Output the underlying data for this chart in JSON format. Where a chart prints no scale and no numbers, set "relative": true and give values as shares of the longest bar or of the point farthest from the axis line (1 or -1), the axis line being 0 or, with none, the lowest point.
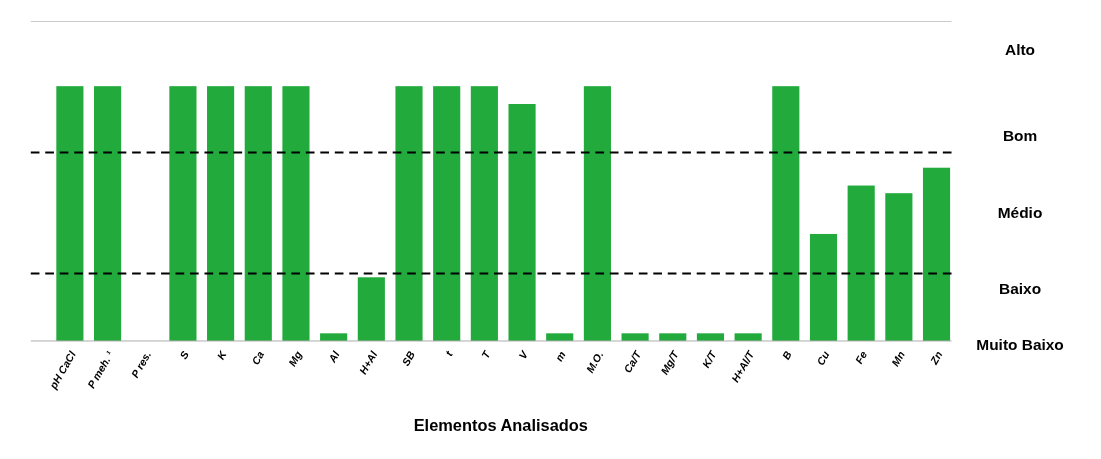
{
  "chart_data": {
    "type": "bar",
    "relative": true,
    "xlabel": "Elementos Analisados",
    "categories": [
      "pH CaCl",
      "P meh. ¹",
      "P res.",
      "S",
      "K",
      "Ca",
      "Mg",
      "Al",
      "H+Al",
      "SB",
      "t",
      "T",
      "V",
      "m",
      "M.O.",
      "Ca/T",
      "Mg/T",
      "K/T",
      "H+Al/T",
      "B",
      "Cu",
      "Fe",
      "Mn",
      "Zn"
    ],
    "values": [
      1,
      1,
      0,
      1,
      1,
      1,
      1,
      0.03,
      0.25,
      1,
      1,
      1,
      0.93,
      0.03,
      1,
      0.03,
      0.03,
      0.03,
      0.03,
      1,
      0.42,
      0.61,
      0.58,
      0.68
    ],
    "color": "#22aa3c",
    "ref_lines": [
      {
        "axis": "y",
        "value": 0.74,
        "color": "#000000",
        "line_style": "dashed"
      },
      {
        "axis": "y",
        "value": 0.265,
        "color": "#000000",
        "line_style": "dashed"
      }
    ],
    "annotations": [
      "Alto",
      "Bom",
      "Médio",
      "Baixo",
      "Muito Baixo"
    ]
  }
}
